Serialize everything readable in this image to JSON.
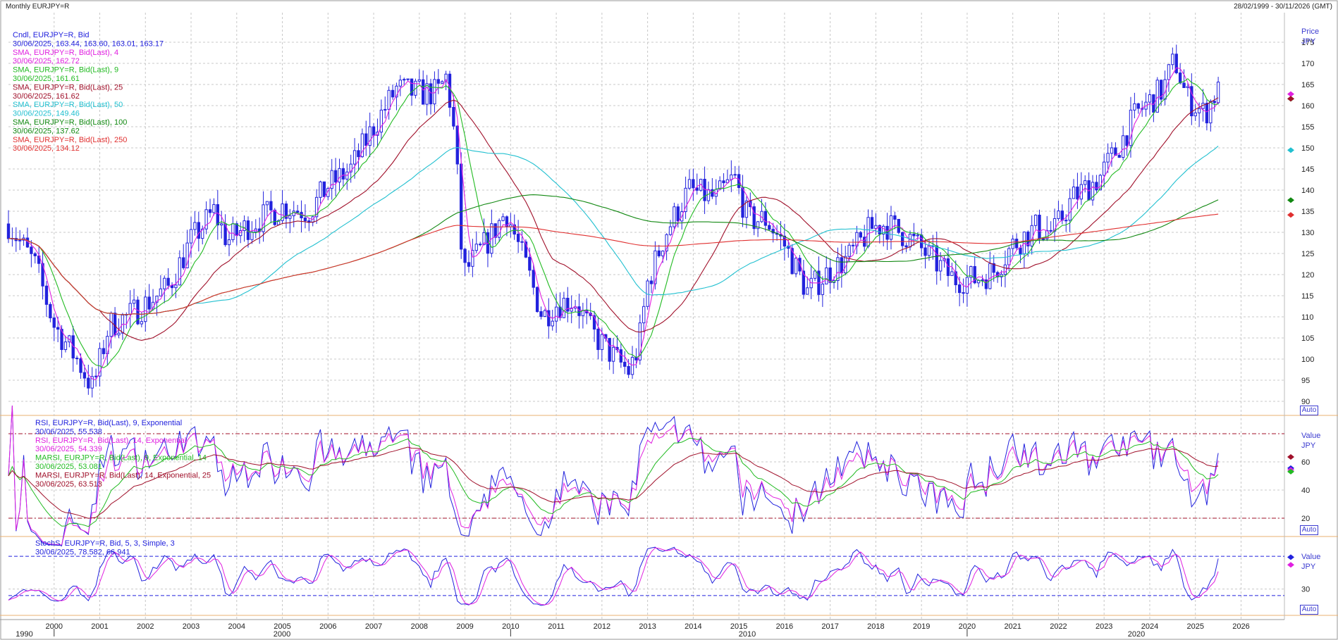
{
  "header": {
    "title": "Monthly EURJPY=R",
    "date_range": "28/02/1999 - 30/11/2026 (GMT)"
  },
  "controls": {
    "auto_label": "Auto"
  },
  "colors": {
    "candle": "#2222dd",
    "sma4": "#e020e0",
    "sma9": "#22bb22",
    "sma25": "#a0102a",
    "sma50": "#22c0d0",
    "sma100": "#118811",
    "sma250": "#e03030",
    "rsi9": "#2222dd",
    "rsi14": "#e020e0",
    "marsi9": "#22bb22",
    "marsi14": "#a0102a",
    "refline": "#a0102a",
    "stoch_k": "#2222dd",
    "stoch_d": "#e020e0",
    "stoch_ref": "#2222dd"
  },
  "chart_data": [
    {
      "type": "candlestick",
      "panel": "price",
      "title": "Monthly EURJPY=R",
      "ylabel_lines": [
        "Price",
        "JPY"
      ],
      "ylim": [
        87,
        182
      ],
      "yticks": [
        90,
        95,
        100,
        105,
        110,
        115,
        120,
        125,
        130,
        135,
        140,
        145,
        150,
        155,
        160,
        165,
        170,
        175
      ],
      "xlim": [
        1999.0,
        2026.95
      ],
      "xticks": [
        "2000",
        "2001",
        "2002",
        "2003",
        "2004",
        "2005",
        "2006",
        "2007",
        "2008",
        "2009",
        "2010",
        "2011",
        "2012",
        "2013",
        "2014",
        "2015",
        "2016",
        "2017",
        "2018",
        "2019",
        "2020",
        "2021",
        "2022",
        "2023",
        "2024",
        "2025",
        "2026"
      ],
      "decades": [
        "1990",
        "2000",
        "2010",
        "2020"
      ],
      "grid": true,
      "anchors": [
        [
          1999.0,
          132
        ],
        [
          1999.6,
          122
        ],
        [
          2000.0,
          108
        ],
        [
          2000.5,
          100
        ],
        [
          2000.85,
          93
        ],
        [
          2001.2,
          108
        ],
        [
          2001.6,
          110
        ],
        [
          2002.0,
          113
        ],
        [
          2002.5,
          117
        ],
        [
          2003.0,
          128
        ],
        [
          2003.5,
          135
        ],
        [
          2003.8,
          128
        ],
        [
          2004.3,
          132
        ],
        [
          2005.0,
          136
        ],
        [
          2005.6,
          135
        ],
        [
          2006.0,
          141
        ],
        [
          2006.5,
          145
        ],
        [
          2007.0,
          155
        ],
        [
          2007.5,
          164
        ],
        [
          2007.9,
          163
        ],
        [
          2008.4,
          163
        ],
        [
          2008.6,
          167
        ],
        [
          2008.8,
          150
        ],
        [
          2008.95,
          120
        ],
        [
          2009.5,
          128
        ],
        [
          2009.9,
          135
        ],
        [
          2010.4,
          120
        ],
        [
          2010.7,
          110
        ],
        [
          2011.0,
          113
        ],
        [
          2011.4,
          114
        ],
        [
          2011.8,
          106
        ],
        [
          2012.3,
          100
        ],
        [
          2012.6,
          97
        ],
        [
          2012.8,
          103
        ],
        [
          2013.0,
          118
        ],
        [
          2013.4,
          130
        ],
        [
          2013.9,
          140
        ],
        [
          2014.5,
          138
        ],
        [
          2014.9,
          143
        ],
        [
          2015.2,
          133
        ],
        [
          2015.6,
          133
        ],
        [
          2016.0,
          127
        ],
        [
          2016.5,
          116
        ],
        [
          2016.9,
          120
        ],
        [
          2017.4,
          124
        ],
        [
          2017.9,
          131
        ],
        [
          2018.2,
          132
        ],
        [
          2018.7,
          129
        ],
        [
          2019.3,
          123
        ],
        [
          2019.7,
          119
        ],
        [
          2020.2,
          119
        ],
        [
          2020.6,
          121
        ],
        [
          2021.0,
          127
        ],
        [
          2021.5,
          131
        ],
        [
          2021.9,
          130
        ],
        [
          2022.3,
          138
        ],
        [
          2022.9,
          143
        ],
        [
          2023.3,
          150
        ],
        [
          2023.7,
          158
        ],
        [
          2024.3,
          164
        ],
        [
          2024.55,
          171
        ],
        [
          2024.8,
          162
        ],
        [
          2025.2,
          158
        ],
        [
          2025.45,
          163.2
        ]
      ],
      "last_close_label": "30/06/2025, 163.44, 163.60, 163.01, 163.17",
      "legend": [
        {
          "text": "Cndl, EURJPY=R, Bid",
          "color": "candle"
        },
        {
          "text": "30/06/2025, 163.44, 163.60, 163.01, 163.17",
          "color": "candle"
        },
        {
          "text": "SMA, EURJPY=R, Bid(Last),  4",
          "color": "sma4"
        },
        {
          "text": "30/06/2025, 162.72",
          "color": "sma4"
        },
        {
          "text": "SMA, EURJPY=R, Bid(Last),  9",
          "color": "sma9"
        },
        {
          "text": "30/06/2025, 161.61",
          "color": "sma9"
        },
        {
          "text": "SMA, EURJPY=R, Bid(Last),  25",
          "color": "sma25"
        },
        {
          "text": "30/06/2025, 161.62",
          "color": "sma25"
        },
        {
          "text": "SMA, EURJPY=R, Bid(Last),  50",
          "color": "sma50"
        },
        {
          "text": "30/06/2025, 149.46",
          "color": "sma50"
        },
        {
          "text": "SMA, EURJPY=R, Bid(Last),  100",
          "color": "sma100"
        },
        {
          "text": "30/06/2025, 137.62",
          "color": "sma100"
        },
        {
          "text": "SMA, EURJPY=R, Bid(Last),  250",
          "color": "sma250"
        },
        {
          "text": "30/06/2025, 134.12",
          "color": "sma250"
        }
      ],
      "series": [
        {
          "name": "SMA 4",
          "color": "sma4",
          "period": 4,
          "last": 162.72
        },
        {
          "name": "SMA 9",
          "color": "sma9",
          "period": 9,
          "last": 161.61
        },
        {
          "name": "SMA 25",
          "color": "sma25",
          "period": 25,
          "last": 161.62
        },
        {
          "name": "SMA 50",
          "color": "sma50",
          "period": 50,
          "last": 149.46
        },
        {
          "name": "SMA 100",
          "color": "sma100",
          "period": 100,
          "last": 137.62
        },
        {
          "name": "SMA 250",
          "color": "sma250",
          "period": 250,
          "last": 134.12
        }
      ]
    },
    {
      "type": "line",
      "panel": "rsi",
      "ylabel_lines": [
        "Value",
        "JPY"
      ],
      "ylim": [
        8,
        92
      ],
      "yticks": [
        20,
        40,
        60
      ],
      "ref_lines": [
        20,
        80
      ],
      "legend": [
        {
          "text": "RSI, EURJPY=R, Bid(Last),  9, Exponential",
          "color": "rsi9"
        },
        {
          "text": "30/06/2025, 55.538",
          "color": "rsi9"
        },
        {
          "text": "RSI, EURJPY=R, Bid(Last),  14, Exponential",
          "color": "rsi14"
        },
        {
          "text": "30/06/2025, 54.339",
          "color": "rsi14"
        },
        {
          "text": "MARSI, EURJPY=R, Bid(Last),  9, Exponential, 14",
          "color": "marsi9"
        },
        {
          "text": "30/06/2025, 53.081",
          "color": "marsi9"
        },
        {
          "text": "MARSI, EURJPY=R, Bid(Last),  14, Exponential, 25",
          "color": "marsi14"
        },
        {
          "text": "30/06/2025, 63.513",
          "color": "marsi14"
        }
      ],
      "series": [
        {
          "name": "RSI 9",
          "color": "rsi9",
          "last": 55.538
        },
        {
          "name": "RSI 14",
          "color": "rsi14",
          "last": 54.339
        },
        {
          "name": "MARSI 9",
          "color": "marsi9",
          "last": 53.081
        },
        {
          "name": "MARSI 14",
          "color": "marsi14",
          "last": 63.513
        }
      ]
    },
    {
      "type": "line",
      "panel": "stoch",
      "ylabel_lines": [
        "Value",
        "JPY"
      ],
      "ylim": [
        -8,
        108
      ],
      "yticks": [
        30
      ],
      "ref_lines": [
        20,
        80
      ],
      "legend": [
        {
          "text": "StochS, EURJPY=R, Bid,  5, 3, Simple, 3",
          "color": "stoch_k"
        },
        {
          "text": "30/06/2025, 78.582, 66.941",
          "color": "stoch_k"
        }
      ],
      "series": [
        {
          "name": "%K",
          "color": "stoch_k",
          "last": 78.582
        },
        {
          "name": "%D",
          "color": "stoch_d",
          "last": 66.941
        }
      ]
    }
  ]
}
